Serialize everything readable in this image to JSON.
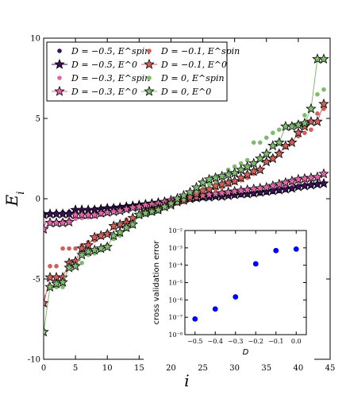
{
  "chart_data": [
    {
      "type": "scatter",
      "xlabel": "i",
      "ylabel": "E_i",
      "xlim": [
        0,
        45
      ],
      "ylim": [
        -10,
        10
      ],
      "xticks": [
        "0",
        "5",
        "10",
        "15",
        "20",
        "25",
        "30",
        "35",
        "40",
        "45"
      ],
      "yticks": [
        "-10",
        "-5",
        "0",
        "5",
        "10"
      ],
      "legend_position": "top-left",
      "legend_columns": 2,
      "series": [
        {
          "name": "D = −0.5, E^spin",
          "style": "dots",
          "color": "#3b0f5a",
          "x": [
            0,
            1,
            2,
            3,
            4,
            5,
            6,
            7,
            8,
            9,
            10,
            11,
            12,
            13,
            14,
            15,
            16,
            17,
            18,
            19,
            20,
            21,
            22,
            23,
            24,
            25,
            26,
            27,
            28,
            29,
            30,
            31,
            32,
            33,
            34,
            35,
            36,
            37,
            38,
            39,
            40,
            41,
            42,
            43,
            44
          ],
          "y": [
            -0.95,
            -0.9,
            -0.88,
            -0.85,
            -0.82,
            -0.75,
            -0.7,
            -0.66,
            -0.62,
            -0.6,
            -0.55,
            -0.52,
            -0.5,
            -0.45,
            -0.42,
            -0.38,
            -0.35,
            -0.32,
            -0.28,
            -0.25,
            -0.2,
            -0.15,
            -0.1,
            -0.05,
            0.0,
            0.05,
            0.1,
            0.12,
            0.15,
            0.18,
            0.2,
            0.22,
            0.25,
            0.28,
            0.32,
            0.38,
            0.42,
            0.48,
            0.55,
            0.62,
            0.72,
            0.8,
            0.85,
            0.9,
            0.95
          ]
        },
        {
          "name": "D = −0.5, E^0",
          "style": "stars-line",
          "color": "#3b0f5a",
          "x": [
            0,
            1,
            2,
            3,
            4,
            5,
            6,
            7,
            8,
            9,
            10,
            11,
            12,
            13,
            14,
            15,
            16,
            17,
            18,
            19,
            20,
            21,
            22,
            23,
            24,
            25,
            26,
            27,
            28,
            29,
            30,
            31,
            32,
            33,
            34,
            35,
            36,
            37,
            38,
            39,
            40,
            41,
            42,
            43,
            44
          ],
          "y": [
            -1.0,
            -0.95,
            -0.95,
            -0.95,
            -0.95,
            -0.7,
            -0.7,
            -0.7,
            -0.7,
            -0.65,
            -0.6,
            -0.6,
            -0.55,
            -0.5,
            -0.45,
            -0.4,
            -0.35,
            -0.3,
            -0.25,
            -0.2,
            -0.15,
            -0.1,
            -0.05,
            0.0,
            0.05,
            0.1,
            0.1,
            0.15,
            0.15,
            0.2,
            0.25,
            0.3,
            0.3,
            0.35,
            0.4,
            0.45,
            0.5,
            0.55,
            0.6,
            0.65,
            0.75,
            0.8,
            0.85,
            0.9,
            0.95
          ]
        },
        {
          "name": "D = −0.3, E^spin",
          "style": "dots",
          "color": "#e066a8",
          "x": [
            0,
            1,
            2,
            3,
            4,
            5,
            6,
            7,
            8,
            9,
            10,
            11,
            12,
            13,
            14,
            15,
            16,
            17,
            18,
            19,
            20,
            21,
            22,
            23,
            24,
            25,
            26,
            27,
            28,
            29,
            30,
            31,
            32,
            33,
            34,
            35,
            36,
            37,
            38,
            39,
            40,
            41,
            42,
            43,
            44
          ],
          "y": [
            -1.55,
            -1.5,
            -1.45,
            -1.4,
            -1.35,
            -1.25,
            -1.2,
            -1.15,
            -1.1,
            -1.0,
            -0.9,
            -0.8,
            -0.75,
            -0.65,
            -0.55,
            -0.5,
            -0.45,
            -0.35,
            -0.25,
            -0.15,
            -0.05,
            0.0,
            0.05,
            0.1,
            0.15,
            0.2,
            0.25,
            0.3,
            0.35,
            0.4,
            0.45,
            0.5,
            0.55,
            0.6,
            0.65,
            0.7,
            0.75,
            0.8,
            0.85,
            0.95,
            1.05,
            1.15,
            1.25,
            1.35,
            1.5
          ]
        },
        {
          "name": "D = −0.3, E^0",
          "style": "stars-line",
          "color": "#e066a8",
          "x": [
            0,
            1,
            2,
            3,
            4,
            5,
            6,
            7,
            8,
            9,
            10,
            11,
            12,
            13,
            14,
            15,
            16,
            17,
            18,
            19,
            20,
            21,
            22,
            23,
            24,
            25,
            26,
            27,
            28,
            29,
            30,
            31,
            32,
            33,
            34,
            35,
            36,
            37,
            38,
            39,
            40,
            41,
            42,
            43,
            44
          ],
          "y": [
            -1.9,
            -1.5,
            -1.5,
            -1.5,
            -1.45,
            -1.0,
            -1.0,
            -1.0,
            -1.0,
            -0.9,
            -0.85,
            -0.8,
            -0.75,
            -0.65,
            -0.55,
            -0.5,
            -0.4,
            -0.35,
            -0.3,
            -0.2,
            -0.1,
            0.0,
            0.05,
            0.1,
            0.15,
            0.2,
            0.25,
            0.3,
            0.35,
            0.4,
            0.45,
            0.5,
            0.55,
            0.6,
            0.65,
            0.7,
            0.8,
            0.9,
            1.0,
            1.1,
            1.2,
            1.25,
            1.3,
            1.35,
            1.55
          ]
        },
        {
          "name": "D = −0.1, E^spin",
          "style": "dots",
          "color": "#d0605a",
          "x": [
            0,
            1,
            2,
            3,
            4,
            5,
            6,
            7,
            8,
            9,
            10,
            11,
            12,
            13,
            14,
            15,
            16,
            17,
            18,
            19,
            20,
            21,
            22,
            23,
            24,
            25,
            26,
            27,
            28,
            29,
            30,
            31,
            32,
            33,
            34,
            35,
            36,
            37,
            38,
            39,
            40,
            41,
            42,
            43,
            44
          ],
          "y": [
            -6.1,
            -4.2,
            -4.2,
            -3.1,
            -3.1,
            -3.1,
            -2.9,
            -2.7,
            -2.6,
            -2.4,
            -2.1,
            -1.8,
            -1.7,
            -1.3,
            -1.2,
            -1.0,
            -0.9,
            -0.8,
            -0.7,
            -0.55,
            -0.4,
            -0.3,
            -0.2,
            0.0,
            0.1,
            0.3,
            0.5,
            0.6,
            0.7,
            0.85,
            1.0,
            1.15,
            1.3,
            1.55,
            1.75,
            2.3,
            2.6,
            2.9,
            3.2,
            3.6,
            3.9,
            4.1,
            4.3,
            5.3,
            5.6
          ]
        },
        {
          "name": "D = −0.1, E^0",
          "style": "stars-line",
          "color": "#d0605a",
          "x": [
            0,
            1,
            2,
            3,
            4,
            5,
            6,
            7,
            8,
            9,
            10,
            11,
            12,
            13,
            14,
            15,
            16,
            17,
            18,
            19,
            20,
            21,
            22,
            23,
            24,
            25,
            26,
            27,
            28,
            29,
            30,
            31,
            32,
            33,
            34,
            35,
            36,
            37,
            38,
            39,
            40,
            41,
            42,
            43,
            44
          ],
          "y": [
            -6.5,
            -4.9,
            -4.9,
            -4.9,
            -4.0,
            -3.9,
            -3.1,
            -2.9,
            -2.4,
            -2.3,
            -2.2,
            -1.7,
            -1.6,
            -1.5,
            -1.2,
            -1.0,
            -0.8,
            -0.7,
            -0.6,
            -0.5,
            -0.4,
            -0.2,
            -0.1,
            0.1,
            0.3,
            0.5,
            0.6,
            0.8,
            0.9,
            1.0,
            1.1,
            1.3,
            1.5,
            1.7,
            1.8,
            2.3,
            2.5,
            2.8,
            3.3,
            3.5,
            4.1,
            4.5,
            4.8,
            4.8,
            5.9
          ]
        },
        {
          "name": "D = 0, E^spin",
          "style": "dots",
          "color": "#7fba6e",
          "x": [
            0,
            1,
            2,
            3,
            4,
            5,
            6,
            7,
            8,
            9,
            10,
            11,
            12,
            13,
            14,
            15,
            16,
            17,
            18,
            19,
            20,
            21,
            22,
            23,
            24,
            25,
            26,
            27,
            28,
            29,
            30,
            31,
            32,
            33,
            34,
            35,
            36,
            37,
            38,
            39,
            40,
            41,
            42,
            43,
            44
          ],
          "y": [
            -8.2,
            -5.5,
            -5.5,
            -5.5,
            -4.2,
            -4.2,
            -4.0,
            -3.5,
            -3.4,
            -3.2,
            -2.9,
            -2.5,
            -2.3,
            -1.9,
            -1.7,
            -1.1,
            -1.0,
            -0.9,
            -0.8,
            -0.6,
            -0.4,
            -0.2,
            0.0,
            0.3,
            0.5,
            0.8,
            0.9,
            1.1,
            1.3,
            1.8,
            2.0,
            2.2,
            2.4,
            3.5,
            3.5,
            3.8,
            4.1,
            4.3,
            4.5,
            4.6,
            4.7,
            5.2,
            5.6,
            6.5,
            6.8
          ]
        },
        {
          "name": "D = 0, E^0",
          "style": "stars-line",
          "color": "#7fba6e",
          "x": [
            0,
            1,
            2,
            3,
            4,
            5,
            6,
            7,
            8,
            9,
            10,
            11,
            12,
            13,
            14,
            15,
            16,
            17,
            18,
            19,
            20,
            21,
            22,
            23,
            24,
            25,
            26,
            27,
            28,
            29,
            30,
            31,
            32,
            33,
            34,
            35,
            36,
            37,
            38,
            39,
            40,
            41,
            42,
            43,
            44
          ],
          "y": [
            -8.3,
            -5.5,
            -5.3,
            -5.2,
            -4.3,
            -4.2,
            -3.5,
            -3.3,
            -3.2,
            -3.1,
            -3.0,
            -2.3,
            -2.1,
            -1.8,
            -1.6,
            -1.0,
            -0.9,
            -0.8,
            -0.7,
            -0.5,
            -0.3,
            0.0,
            0.2,
            0.4,
            0.7,
            1.0,
            1.2,
            1.3,
            1.4,
            1.5,
            1.6,
            1.8,
            2.0,
            2.2,
            2.5,
            2.8,
            3.3,
            3.5,
            4.5,
            4.5,
            4.6,
            4.7,
            5.6,
            8.7,
            8.7
          ]
        }
      ]
    },
    {
      "type": "scatter",
      "xlabel": "D",
      "ylabel": "cross validation error",
      "xlim": [
        -0.55,
        0.05
      ],
      "ylim_log10": [
        -8,
        -2
      ],
      "log_y": true,
      "xticks": [
        "−0.5",
        "−0.4",
        "−0.3",
        "−0.2",
        "−0.1",
        "0.0"
      ],
      "yticks": [
        "10⁻⁸",
        "10⁻⁷",
        "10⁻⁶",
        "10⁻⁵",
        "10⁻⁴",
        "10⁻³",
        "10⁻²"
      ],
      "color": "#0000ff",
      "x": [
        -0.5,
        -0.4,
        -0.3,
        -0.2,
        -0.1,
        0.0
      ],
      "y": [
        8e-08,
        3e-07,
        1.5e-06,
        0.00012,
        0.0007,
        0.00085
      ]
    }
  ]
}
